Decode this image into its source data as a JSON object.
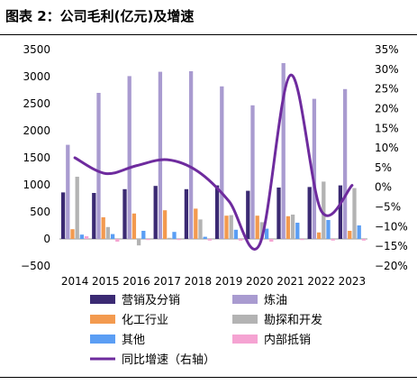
{
  "chart_data": {
    "type": "bar",
    "title": "图表 2：公司毛利(亿元)及增速",
    "categories": [
      "2014",
      "2015",
      "2016",
      "2017",
      "2018",
      "2019",
      "2020",
      "2021",
      "2022",
      "2023"
    ],
    "ylim": [
      -500,
      3500
    ],
    "y_ticks": [
      "3500",
      "3000",
      "2500",
      "2000",
      "1500",
      "1000",
      "500",
      "0",
      "−500"
    ],
    "y2lim": [
      -20,
      35
    ],
    "y2_ticks": [
      "35%",
      "30%",
      "25%",
      "20%",
      "15%",
      "10%",
      "5%",
      "0%",
      "−5%",
      "−10%",
      "−15%",
      "−20%"
    ],
    "series": [
      {
        "name": "营销及分销",
        "color": "#3b2a73",
        "values": [
          860,
          850,
          920,
          980,
          920,
          990,
          890,
          950,
          960,
          990
        ]
      },
      {
        "name": "炼油",
        "color": "#a99bd0",
        "values": [
          1740,
          2700,
          3010,
          3090,
          3100,
          2820,
          2470,
          3250,
          2590,
          2770
        ]
      },
      {
        "name": "化工行业",
        "color": "#f39a4f",
        "values": [
          180,
          400,
          470,
          530,
          560,
          430,
          430,
          420,
          120,
          150
        ]
      },
      {
        "name": "勘探和开发",
        "color": "#b3b3b3",
        "values": [
          1150,
          220,
          -120,
          20,
          360,
          440,
          310,
          450,
          1060,
          940
        ]
      },
      {
        "name": "其他",
        "color": "#5b9ef4",
        "values": [
          80,
          90,
          150,
          130,
          40,
          170,
          190,
          300,
          350,
          250
        ]
      },
      {
        "name": "内部抵销",
        "color": "#f5a3d2",
        "values": [
          50,
          -50,
          -20,
          -20,
          -30,
          -30,
          -50,
          -20,
          -30,
          -30
        ]
      }
    ],
    "line_series": {
      "name": "同比增速（右轴）",
      "color": "#6e2b9e",
      "axis": "right",
      "values": [
        7.5,
        3.5,
        5.5,
        7.0,
        4.0,
        -3.5,
        -14.5,
        28.5,
        -6.0,
        0.5
      ]
    },
    "legend": [
      "营销及分销",
      "炼油",
      "化工行业",
      "勘探和开发",
      "其他",
      "内部抵销",
      "同比增速（右轴）"
    ],
    "grid": false,
    "legend_position": "bottom"
  }
}
